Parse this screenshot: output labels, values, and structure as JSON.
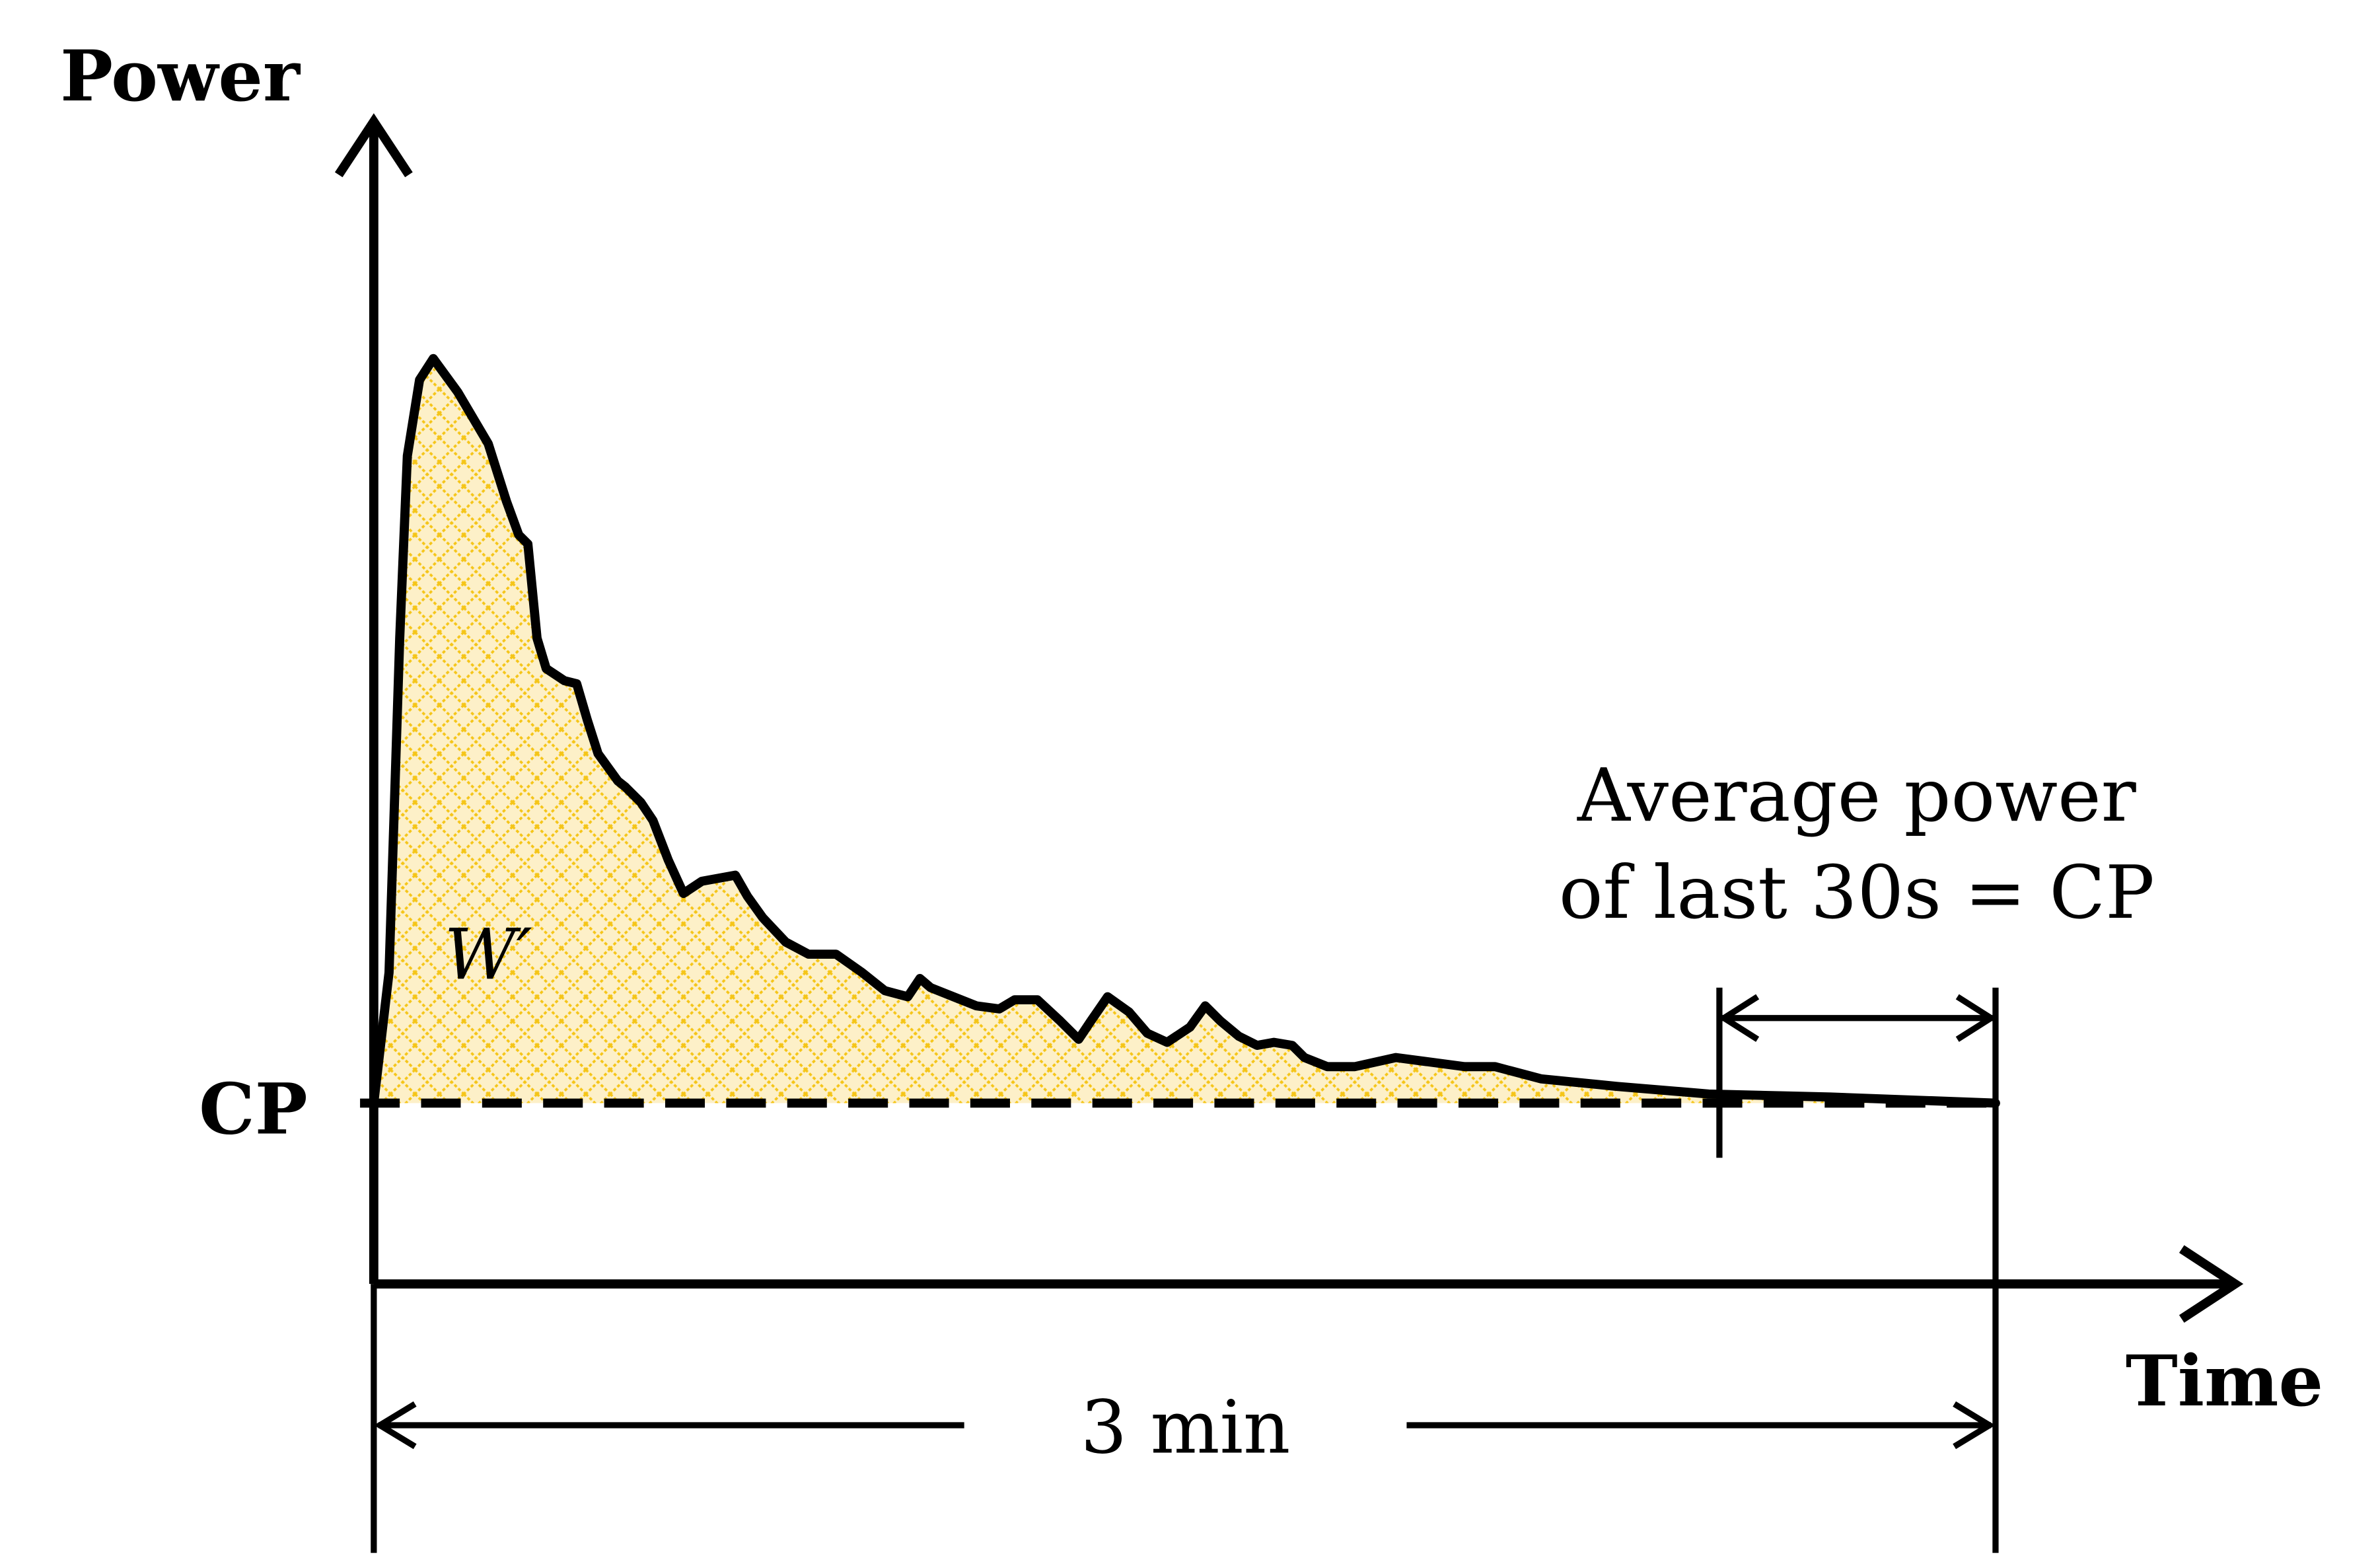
{
  "axes": {
    "y_label": "Power",
    "x_label": "Time"
  },
  "cp_label": "CP",
  "area_label": "W′",
  "annotation": {
    "line1": "Average power",
    "line2": "of last 30s = CP"
  },
  "duration_label": "3 min",
  "colors": {
    "fill": "#fdf0c8",
    "hatch": "#f5c518",
    "line": "#000000"
  }
}
